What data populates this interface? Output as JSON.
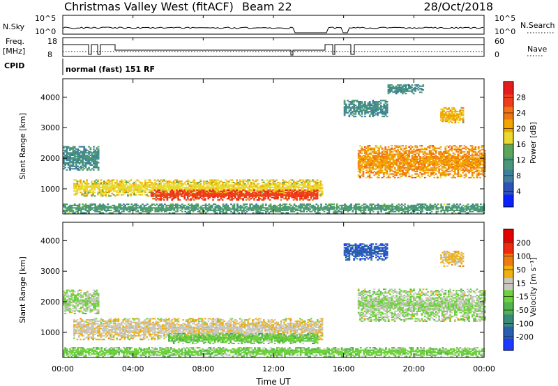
{
  "header": {
    "radar": "Christmas Valley West (fitACF)",
    "beam": "Beam 22",
    "date": "28/Oct/2018"
  },
  "noise_panel": {
    "left_label": "N.Sky",
    "left_ticks": [
      "10^5",
      "10^0"
    ],
    "right_label": "N.Search",
    "right_ticks": [
      "10^5",
      "10^0"
    ]
  },
  "freq_panel": {
    "left_label_1": "Freq.",
    "left_label_2": "[MHz]",
    "left_ticks": [
      "18",
      "8"
    ],
    "right_label": "Nave",
    "right_ticks": [
      "60",
      "0"
    ]
  },
  "cpid_panel": {
    "label": "CPID",
    "text": "normal (fast) 151 RF"
  },
  "x_axis": {
    "label": "Time UT",
    "ticks": [
      "00:00",
      "04:00",
      "08:00",
      "12:00",
      "16:00",
      "20:00",
      "00:00"
    ],
    "range_hours": [
      0,
      24
    ]
  },
  "power_colorbar": {
    "title": "Power [dB]",
    "ticks": [
      "4",
      "8",
      "12",
      "16",
      "20",
      "24",
      "28"
    ],
    "colors": [
      "#0a22ff",
      "#2f52b7",
      "#3f7f9a",
      "#49977b",
      "#5ba65b",
      "#e8d830",
      "#f2a500",
      "#f07515",
      "#ef3c1c",
      "#e61c1c"
    ]
  },
  "velocity_colorbar": {
    "title": "Velocity [m s⁻¹]",
    "ticks": [
      "200",
      "100",
      "50",
      "15",
      "-15",
      "-50",
      "-100",
      "-200"
    ],
    "colors": [
      "#1f3aff",
      "#2a5fb0",
      "#3a8a7a",
      "#53b34f",
      "#6ed23a",
      "#c8c8c0",
      "#f0b010",
      "#f07a10",
      "#ef2a10",
      "#e50000"
    ]
  },
  "chart_data": [
    {
      "type": "heatmap",
      "title": "Power",
      "xlabel": "Time UT",
      "ylabel": "Slant Range [km]",
      "xlim": [
        0,
        24
      ],
      "ylim": [
        180,
        4600
      ],
      "y_ticks": [
        1000,
        2000,
        3000,
        4000
      ],
      "colorbar_label": "Power [dB]",
      "colorbar_range": [
        0,
        32
      ],
      "regions": [
        {
          "name": "near-range band",
          "t": [
            0.6,
            14.8
          ],
          "range": [
            750,
            1300
          ],
          "value": 18
        },
        {
          "name": "core echo",
          "t": [
            5.0,
            14.5
          ],
          "range": [
            620,
            960
          ],
          "value": 27
        },
        {
          "name": "early band",
          "t": [
            0.0,
            2.0
          ],
          "range": [
            1600,
            2400
          ],
          "value": 10
        },
        {
          "name": "far-range band",
          "t": [
            16.8,
            24.0
          ],
          "range": [
            1350,
            2400
          ],
          "value": 22
        },
        {
          "name": "upper cluster",
          "t": [
            18.5,
            20.5
          ],
          "range": [
            4100,
            4400
          ],
          "value": 10
        },
        {
          "name": "late cluster",
          "t": [
            21.5,
            22.8
          ],
          "range": [
            3150,
            3650
          ],
          "value": 20
        },
        {
          "name": "mid cluster",
          "t": [
            16.0,
            18.5
          ],
          "range": [
            3350,
            3900
          ],
          "value": 10
        },
        {
          "name": "ground scatter",
          "t": [
            0.0,
            24.0
          ],
          "range": [
            200,
            500
          ],
          "value": 12
        }
      ]
    },
    {
      "type": "heatmap",
      "title": "Velocity",
      "xlabel": "Time UT",
      "ylabel": "Slant Range [km]",
      "xlim": [
        0,
        24
      ],
      "ylim": [
        180,
        4600
      ],
      "y_ticks": [
        1000,
        2000,
        3000,
        4000
      ],
      "colorbar_label": "Velocity [m s⁻¹]",
      "colorbar_range": [
        -250,
        250
      ],
      "regions": [
        {
          "name": "near-range band",
          "t": [
            0.6,
            14.8
          ],
          "range": [
            750,
            1450
          ],
          "value": 40
        },
        {
          "name": "core echo",
          "t": [
            6.0,
            14.5
          ],
          "range": [
            620,
            960
          ],
          "value": -40
        },
        {
          "name": "early band",
          "t": [
            0.0,
            2.0
          ],
          "range": [
            1600,
            2400
          ],
          "value": 0
        },
        {
          "name": "far-range band",
          "t": [
            16.8,
            24.0
          ],
          "range": [
            1350,
            2400
          ],
          "value": 0
        },
        {
          "name": "mid cluster",
          "t": [
            16.0,
            18.5
          ],
          "range": [
            3350,
            3900
          ],
          "value": -180
        },
        {
          "name": "late cluster",
          "t": [
            21.5,
            22.8
          ],
          "range": [
            3150,
            3650
          ],
          "value": 60
        },
        {
          "name": "ground scatter",
          "t": [
            0.0,
            24.0
          ],
          "range": [
            200,
            500
          ],
          "value": -30
        }
      ]
    }
  ]
}
